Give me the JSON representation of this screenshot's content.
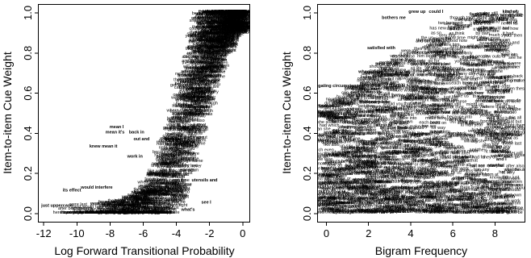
{
  "chart_data": [
    {
      "type": "scatter",
      "title": "",
      "xlabel": "Log Forward Transitional Probability",
      "ylabel": "Item-to-item Cue Weight",
      "xlim": [
        -12.3,
        0.4
      ],
      "ylim": [
        -0.04,
        1.04
      ],
      "xticks": [
        "-12",
        "-10",
        "-8",
        "-6",
        "-4",
        "-2",
        "0"
      ],
      "xtick_values": [
        -12,
        -10,
        -8,
        -6,
        -4,
        -2,
        0
      ],
      "yticks": [
        "0.0",
        "0.2",
        "0.4",
        "0.6",
        "0.8",
        "1.0"
      ],
      "ytick_values": [
        0,
        0.2,
        0.4,
        0.6,
        0.8,
        1.0
      ],
      "point_style": "text labels (word bigrams)",
      "labels": [
        {
          "text": "kind of",
          "x": -0.6,
          "y": 1.0
        },
        {
          "text": "going to",
          "x": -0.5,
          "y": 0.97
        },
        {
          "text": "sort of",
          "x": -0.4,
          "y": 0.95
        },
        {
          "text": "lot of",
          "x": -0.7,
          "y": 0.93
        },
        {
          "text": "bet",
          "x": -3.9,
          "y": 0.64
        },
        {
          "text": "mean I",
          "x": -7.6,
          "y": 0.425
        },
        {
          "text": "mean it's",
          "x": -7.7,
          "y": 0.4
        },
        {
          "text": "back in",
          "x": -6.4,
          "y": 0.4
        },
        {
          "text": "out and",
          "x": -6.1,
          "y": 0.365
        },
        {
          "text": "knew mean it",
          "x": -8.4,
          "y": 0.33
        },
        {
          "text": "work in",
          "x": -6.5,
          "y": 0.28
        },
        {
          "text": "would interfere",
          "x": -8.8,
          "y": 0.125
        },
        {
          "text": "its effect",
          "x": -10.3,
          "y": 0.11
        },
        {
          "text": "just uppercase",
          "x": -11.2,
          "y": 0.035
        },
        {
          "text": "utensils and",
          "x": -2.3,
          "y": 0.16
        },
        {
          "text": "see I",
          "x": -2.2,
          "y": 0.05
        },
        {
          "text": "what's",
          "x": -3.3,
          "y": 0.015
        },
        {
          "text": "drive my bike",
          "x": -1.9,
          "y": 0.7
        },
        {
          "text": "few",
          "x": -2.8,
          "y": 0.86
        }
      ]
    },
    {
      "type": "scatter",
      "title": "",
      "xlabel": "Bigram Frequency",
      "ylabel": "Item-to-item Cue Weight",
      "xlim": [
        -0.4,
        9.4
      ],
      "ylim": [
        -0.04,
        1.04
      ],
      "xticks": [
        "0",
        "2",
        "4",
        "6",
        "8"
      ],
      "xtick_values": [
        0,
        2,
        4,
        6,
        8
      ],
      "yticks": [
        "0.0",
        "0.2",
        "0.4",
        "0.6",
        "0.8",
        "1.0"
      ],
      "ytick_values": [
        0,
        0.2,
        0.4,
        0.6,
        0.8,
        1.0
      ],
      "point_style": "text labels (word bigrams)",
      "labels": [
        {
          "text": "kind of",
          "x": 8.7,
          "y": 1.0
        },
        {
          "text": "going to",
          "x": 8.5,
          "y": 0.97
        },
        {
          "text": "lot of",
          "x": 8.8,
          "y": 0.945
        },
        {
          "text": "grew up",
          "x": 4.3,
          "y": 1.0
        },
        {
          "text": "could I",
          "x": 5.2,
          "y": 1.0
        },
        {
          "text": "bothers me",
          "x": 3.2,
          "y": 0.97
        },
        {
          "text": "used to",
          "x": 7.5,
          "y": 0.86
        },
        {
          "text": "satisfied with",
          "x": 2.6,
          "y": 0.82
        },
        {
          "text": "worse than",
          "x": 3.6,
          "y": 0.76
        },
        {
          "text": "wheel-drive",
          "x": 2.1,
          "y": 0.7
        },
        {
          "text": "flexible hours",
          "x": 3.7,
          "y": 0.63
        },
        {
          "text": "mitigating circumstances",
          "x": 0.5,
          "y": 0.63
        },
        {
          "text": "stationary bike",
          "x": 2.3,
          "y": 0.55
        },
        {
          "text": "disability",
          "x": 1.8,
          "y": 0.5
        },
        {
          "text": "don't know",
          "x": 7.9,
          "y": 0.745
        },
        {
          "text": "have a",
          "x": 8.2,
          "y": 0.67
        },
        {
          "text": "so I",
          "x": 8.0,
          "y": 0.625
        },
        {
          "text": "but I",
          "x": 8.6,
          "y": 0.6
        },
        {
          "text": "want to",
          "x": 6.7,
          "y": 0.74
        },
        {
          "text": "well it",
          "x": 7.9,
          "y": 0.47
        },
        {
          "text": "and I",
          "x": 8.3,
          "y": 0.265
        },
        {
          "text": "travel",
          "x": 8.1,
          "y": 0.305
        },
        {
          "text": "and when",
          "x": 8.5,
          "y": 0.025
        },
        {
          "text": "what's",
          "x": 8.1,
          "y": 0.0
        }
      ]
    }
  ]
}
